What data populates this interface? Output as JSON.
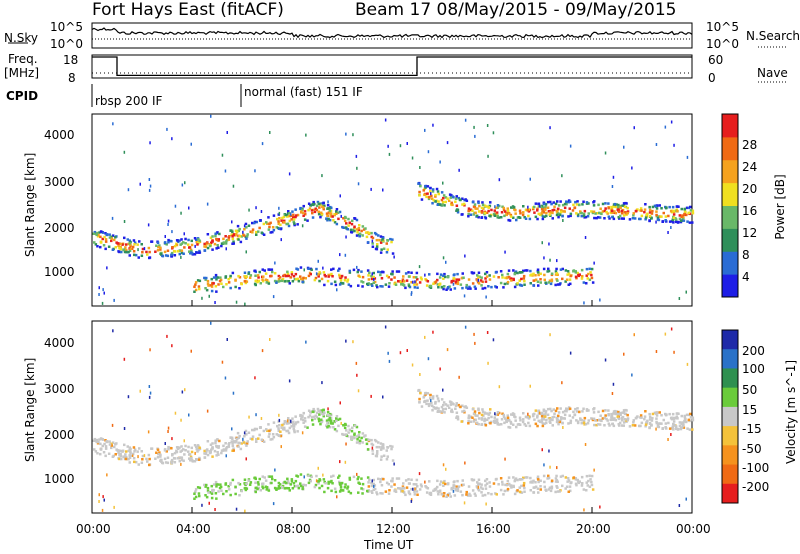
{
  "header": {
    "title_left": "Fort Hays East (fitACF)",
    "title_right": "Beam 17 08/May/2015 - 09/May/2015"
  },
  "noise_panel": {
    "left_label": "N.Sky",
    "right_label": "N.Search",
    "left_ticks": [
      "10^5",
      "10^0"
    ],
    "right_ticks": [
      "10^5",
      "10^0"
    ]
  },
  "freq_panel": {
    "left_label_1": "Freq.",
    "left_label_2": "[MHz]",
    "left_ticks": [
      "18",
      "8"
    ],
    "right_label": "Nave",
    "right_ticks": [
      "60",
      "0"
    ]
  },
  "cpid_panel": {
    "label": "CPID",
    "segments": [
      "rbsp 200 IF",
      "normal (fast) 151 IF"
    ]
  },
  "power_panel": {
    "ylabel": "Slant Range [km]",
    "yticks": [
      "4000",
      "3000",
      "2000",
      "1000"
    ],
    "colorbar_label": "Power [dB]",
    "colorbar_ticks": [
      "28",
      "24",
      "20",
      "16",
      "12",
      "8",
      "4"
    ],
    "colors": [
      "#1e1ee6",
      "#2a6cd4",
      "#2f8f5a",
      "#69b868",
      "#f0e020",
      "#f5a21e",
      "#f06a14",
      "#e61e1e"
    ]
  },
  "velocity_panel": {
    "ylabel": "Slant Range [km]",
    "yticks": [
      "4000",
      "3000",
      "2000",
      "1000"
    ],
    "colorbar_label": "Velocity [m s^-1]",
    "colorbar_ticks": [
      "200",
      "100",
      "50",
      "15",
      "-15",
      "-50",
      "-100",
      "-200"
    ],
    "colors": [
      "#1e2aa8",
      "#2a72c8",
      "#2f9050",
      "#6acb3a",
      "#c8c8c8",
      "#f4c23a",
      "#f5921e",
      "#f06a14",
      "#e61e1e"
    ]
  },
  "x_axis": {
    "label": "Time UT",
    "ticks": [
      "00:00",
      "04:00",
      "08:00",
      "12:00",
      "16:00",
      "20:00",
      "00:00"
    ]
  },
  "chart_data": {
    "type": "heatmap",
    "title": "Fort Hays East (fitACF) Beam 17 08/May/2015 - 09/May/2015",
    "xlabel": "Time UT",
    "ylabel": "Slant Range [km]",
    "x_ticks": [
      "00:00",
      "04:00",
      "08:00",
      "12:00",
      "16:00",
      "20:00",
      "00:00"
    ],
    "xlim_hours": [
      0,
      24
    ],
    "ylim_km": [
      180,
      4500
    ],
    "cpid_segments": [
      {
        "label": "rbsp 200 IF",
        "start_hour": 0,
        "end_hour": 6
      },
      {
        "label": "normal (fast) 151 IF",
        "start_hour": 6,
        "end_hour": 24
      }
    ],
    "frequency_mhz_steps": [
      {
        "start_hour": 0,
        "end_hour": 1,
        "value": 18
      },
      {
        "start_hour": 1,
        "end_hour": 13,
        "value": 10
      },
      {
        "start_hour": 13,
        "end_hour": 24,
        "value": 18
      }
    ],
    "power_scale_db": [
      0,
      30
    ],
    "velocity_scale_ms": [
      -200,
      200
    ],
    "scatter_bands": [
      {
        "name": "upper band",
        "points_hour_km": [
          [
            0,
            1750
          ],
          [
            2,
            1450
          ],
          [
            4,
            1550
          ],
          [
            6,
            1850
          ],
          [
            8,
            2200
          ],
          [
            9,
            2400
          ],
          [
            10.5,
            2000
          ],
          [
            11.5,
            1600
          ],
          [
            12,
            1550
          ]
        ]
      },
      {
        "name": "lower band",
        "points_hour_km": [
          [
            4,
            650
          ],
          [
            6,
            800
          ],
          [
            8,
            900
          ],
          [
            10,
            850
          ],
          [
            12,
            800
          ],
          [
            14,
            750
          ],
          [
            16,
            800
          ],
          [
            18,
            850
          ],
          [
            20,
            900
          ]
        ]
      },
      {
        "name": "late band",
        "points_hour_km": [
          [
            13,
            2800
          ],
          [
            15,
            2400
          ],
          [
            17,
            2300
          ],
          [
            19,
            2400
          ],
          [
            21,
            2350
          ],
          [
            24,
            2250
          ]
        ]
      }
    ]
  }
}
